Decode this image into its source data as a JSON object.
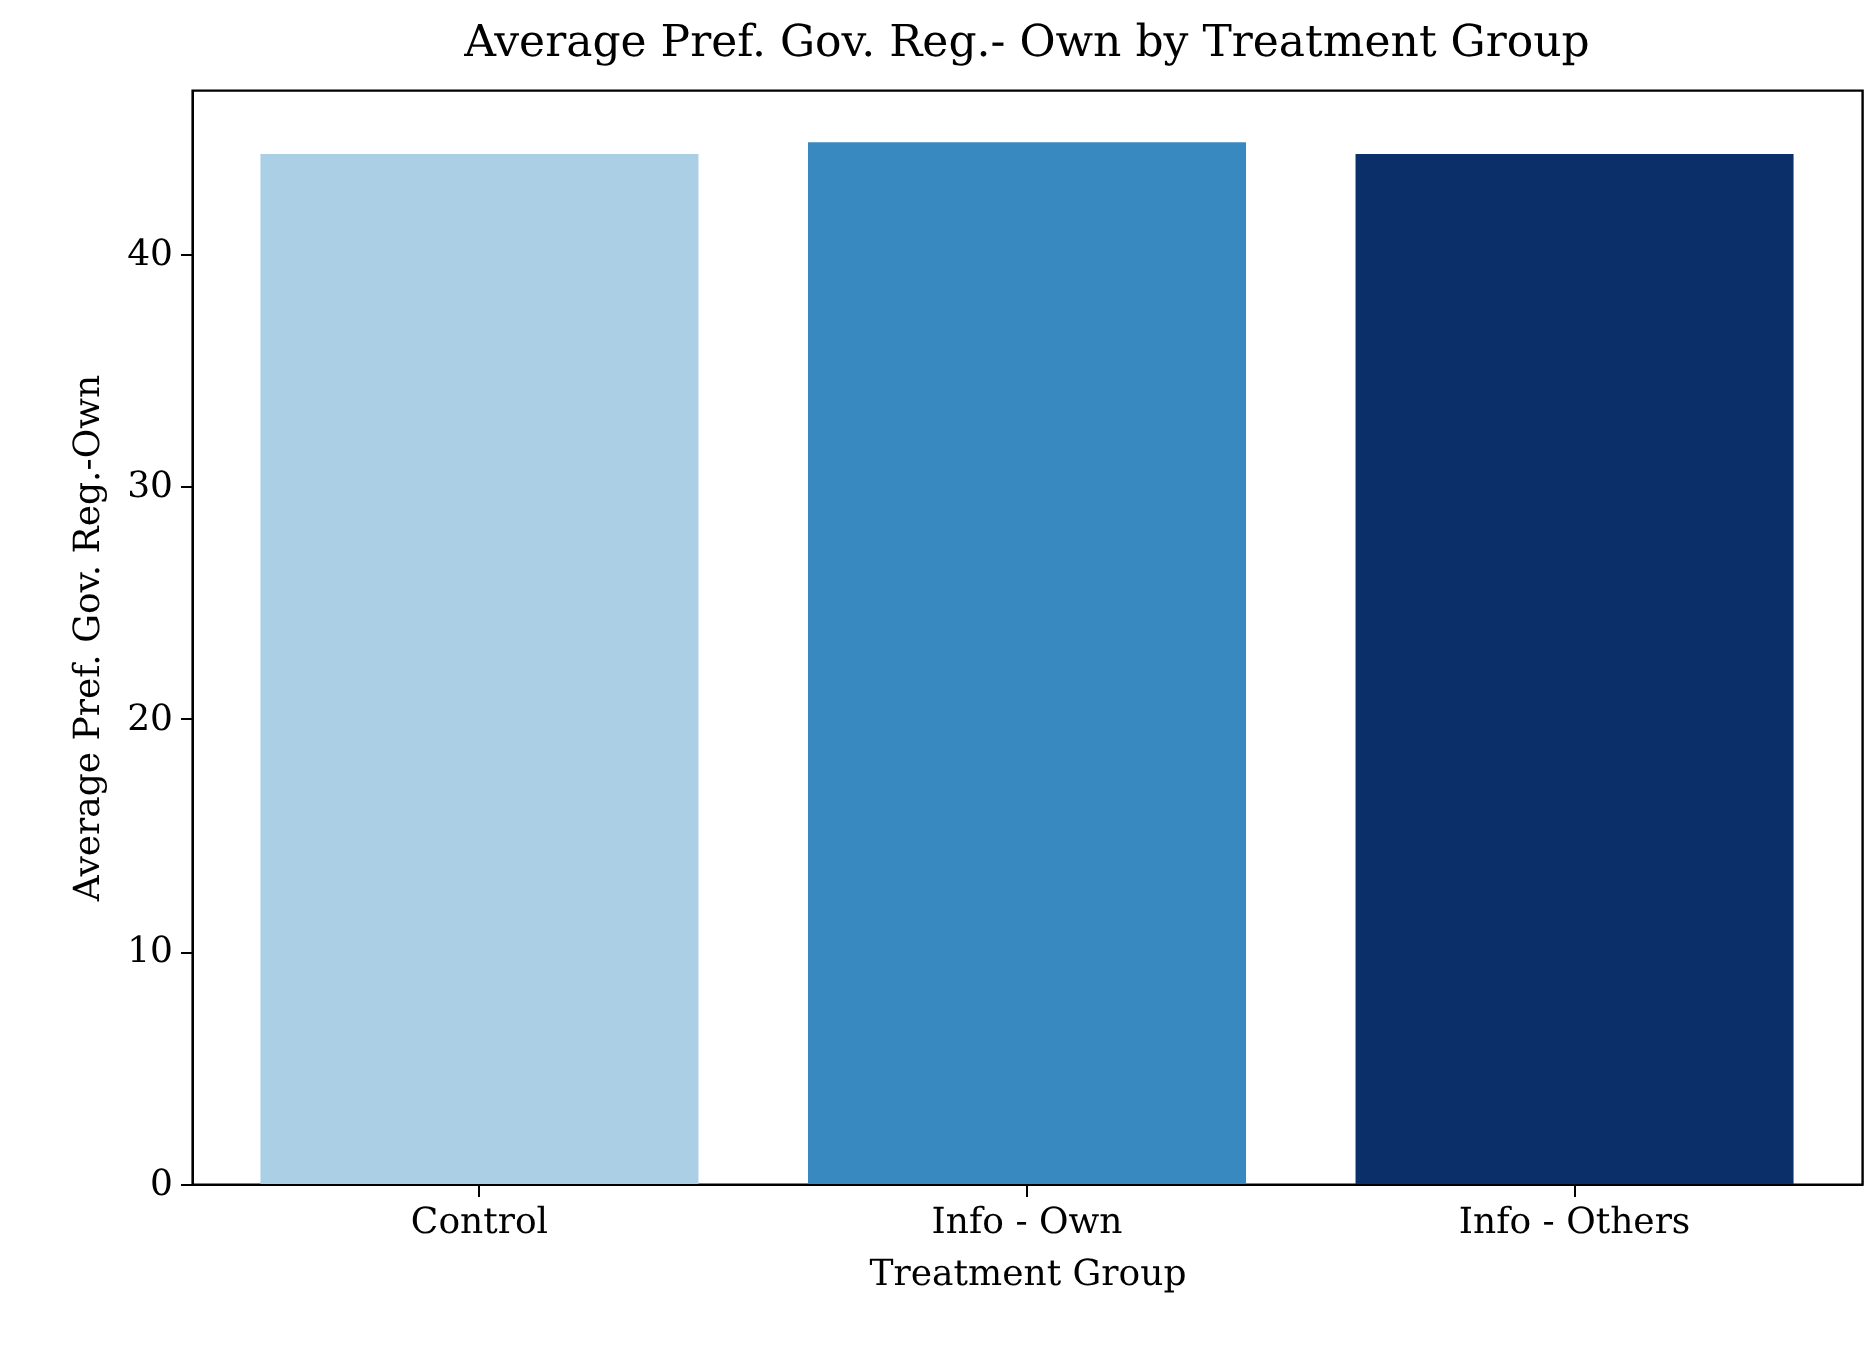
{
  "chart_data": {
    "type": "bar",
    "title": "Average Pref. Gov. Reg.- Own by Treatment Group",
    "xlabel": "Treatment Group",
    "ylabel": "Average Pref. Gov. Reg.-Own",
    "categories": [
      "Control",
      "Info - Own",
      "Info - Others"
    ],
    "values": [
      44.3,
      44.8,
      44.3
    ],
    "colors": [
      "#abcfe5",
      "#3989c1",
      "#0b3069"
    ],
    "ylim": [
      0,
      47.05
    ],
    "yticks": [
      0,
      10,
      20,
      30,
      40
    ],
    "grid": false
  }
}
